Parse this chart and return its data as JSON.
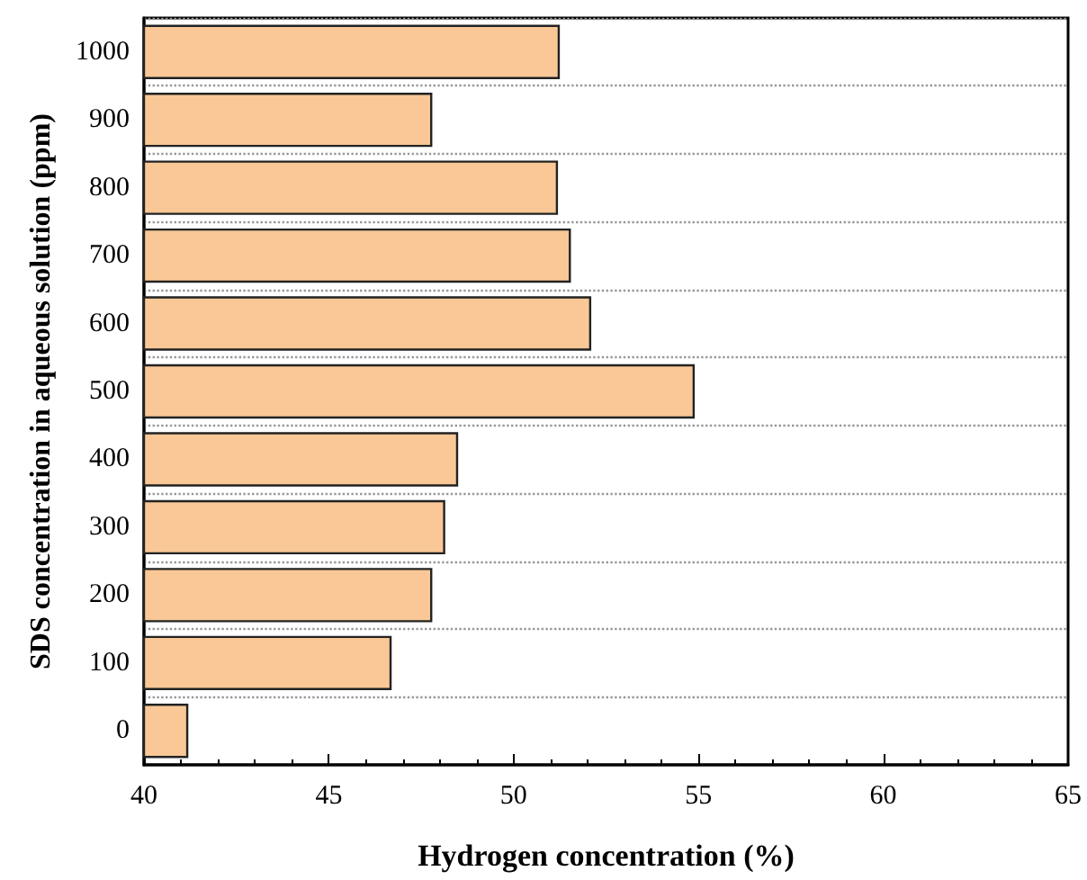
{
  "chart_data": {
    "type": "bar",
    "orientation": "horizontal",
    "xlabel": "Hydrogen concentration (%)",
    "ylabel": "SDS concentration in aqueous solution (ppm)",
    "categories": [
      "1000",
      "900",
      "800",
      "700",
      "600",
      "500",
      "400",
      "300",
      "200",
      "100",
      "0"
    ],
    "values": [
      51.25,
      47.8,
      51.2,
      51.55,
      52.1,
      54.9,
      48.5,
      48.15,
      47.8,
      46.7,
      41.2
    ],
    "color": "#f9c896",
    "xlim": [
      40,
      65
    ],
    "xticks": [
      40,
      45,
      50,
      55,
      60,
      65
    ],
    "grid": "y"
  }
}
